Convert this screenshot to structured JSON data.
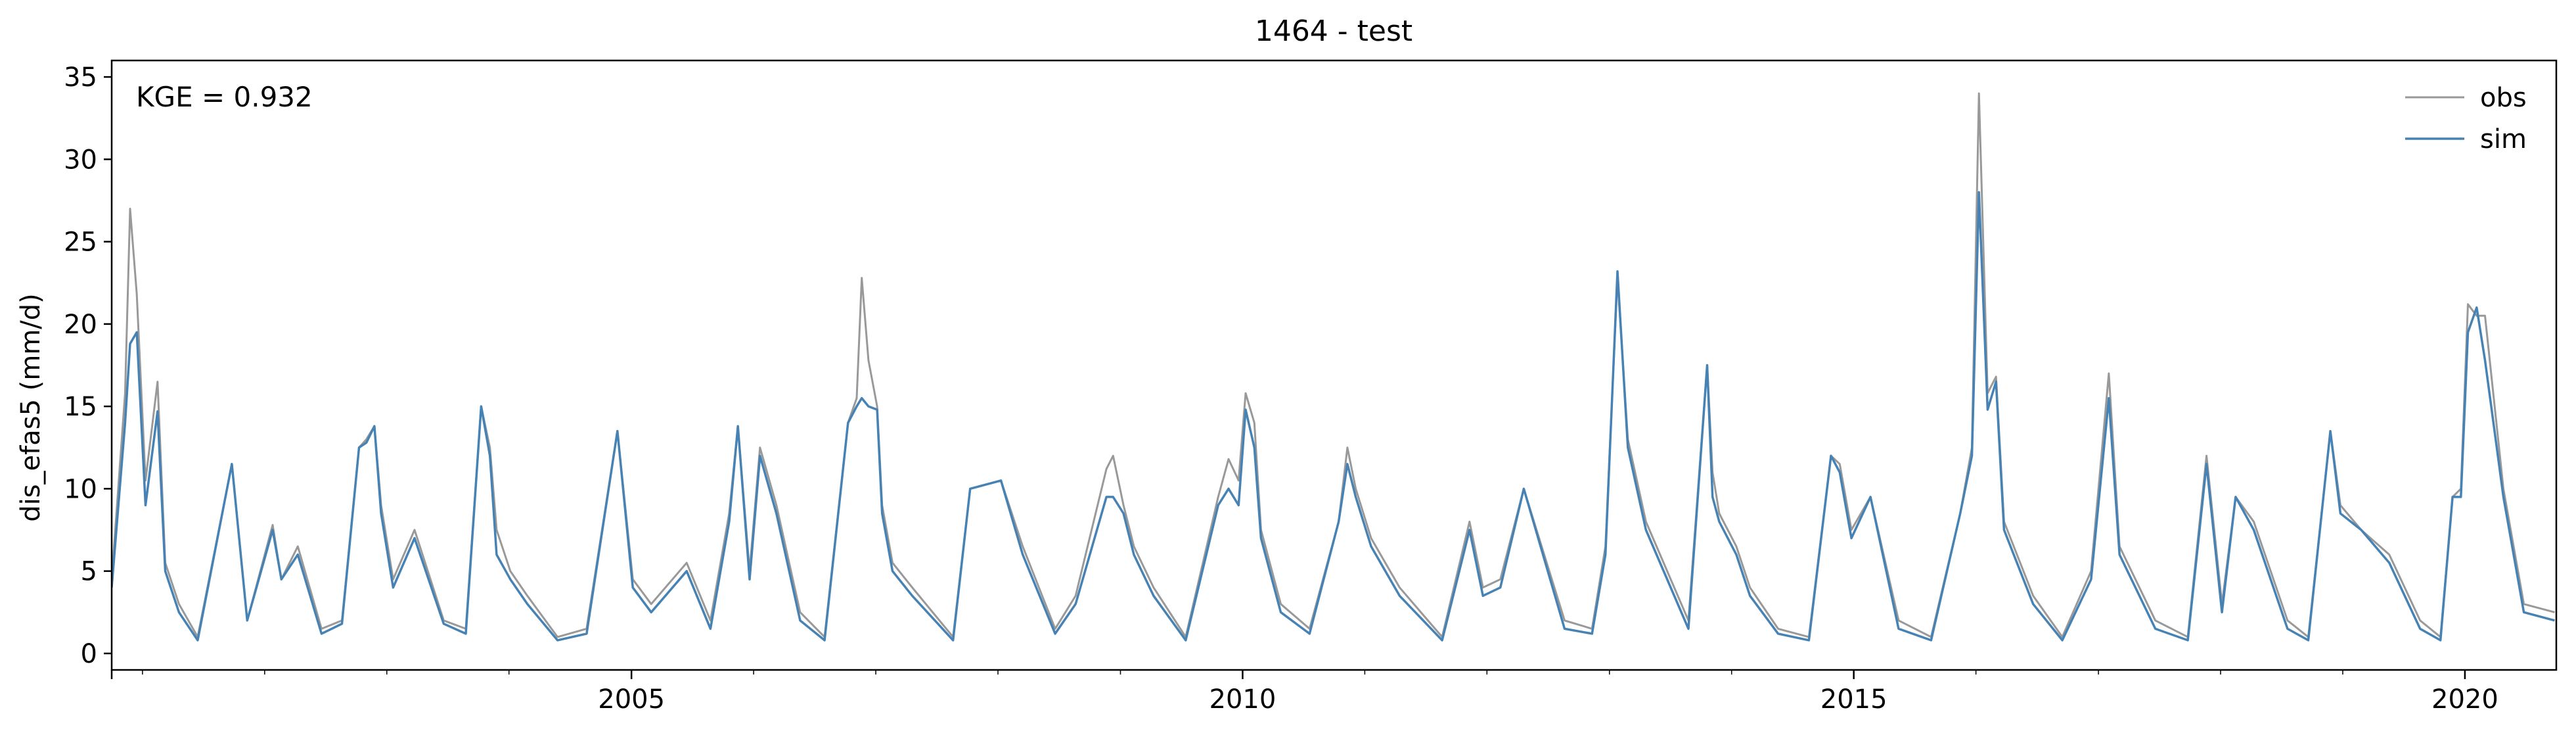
{
  "chart_data": {
    "type": "line",
    "title": "1464 - test",
    "xlabel": "",
    "ylabel": "dis_efas5 (mm/d)",
    "xlim": [
      "2000-10-01",
      "2020-09-30"
    ],
    "ylim": [
      -1,
      36
    ],
    "x_ticks": [
      {
        "value": "2005-01-01",
        "label": "2005"
      },
      {
        "value": "2010-01-01",
        "label": "2010"
      },
      {
        "value": "2015-01-01",
        "label": "2015"
      },
      {
        "value": "2020-01-01",
        "label": "2020"
      }
    ],
    "y_ticks": [
      0,
      5,
      10,
      15,
      20,
      25,
      30,
      35
    ],
    "grid": false,
    "legend": {
      "position": "top-right"
    },
    "annotation": "KGE = 0.932",
    "colors": {
      "obs": "#999999",
      "sim": "#4682b4"
    },
    "series": [
      {
        "name": "obs",
        "x": [
          "2000-10-01",
          "2000-11-10",
          "2000-11-25",
          "2000-12-15",
          "2001-01-10",
          "2001-02-15",
          "2001-03-10",
          "2001-04-20",
          "2001-06-15",
          "2001-09-25",
          "2001-11-10",
          "2002-01-25",
          "2002-02-20",
          "2002-04-10",
          "2002-06-20",
          "2002-08-20",
          "2002-10-10",
          "2002-11-01",
          "2002-11-25",
          "2002-12-15",
          "2003-01-20",
          "2003-03-25",
          "2003-06-20",
          "2003-08-25",
          "2003-10-10",
          "2003-11-05",
          "2003-11-25",
          "2004-01-05",
          "2004-02-25",
          "2004-05-25",
          "2004-08-20",
          "2004-11-20",
          "2005-01-05",
          "2005-03-01",
          "2005-06-15",
          "2005-08-25",
          "2005-10-20",
          "2005-11-15",
          "2005-12-20",
          "2006-01-20",
          "2006-03-10",
          "2006-05-20",
          "2006-08-01",
          "2006-10-10",
          "2006-11-05",
          "2006-11-20",
          "2006-12-10",
          "2007-01-05",
          "2007-01-20",
          "2007-02-20",
          "2007-04-20",
          "2007-08-20",
          "2007-10-10",
          "2008-01-10",
          "2008-03-15",
          "2008-06-20",
          "2008-08-20",
          "2008-11-20",
          "2008-12-10",
          "2009-01-10",
          "2009-02-10",
          "2009-04-10",
          "2009-07-15",
          "2009-10-20",
          "2009-11-20",
          "2009-12-20",
          "2010-01-10",
          "2010-02-05",
          "2010-02-25",
          "2010-04-25",
          "2010-07-20",
          "2010-10-15",
          "2010-11-10",
          "2010-12-05",
          "2011-01-20",
          "2011-04-15",
          "2011-08-20",
          "2011-11-10",
          "2011-12-20",
          "2012-02-10",
          "2012-04-20",
          "2012-08-20",
          "2012-11-10",
          "2012-12-20",
          "2013-01-25",
          "2013-02-25",
          "2013-04-20",
          "2013-08-25",
          "2013-10-20",
          "2013-11-05",
          "2013-11-25",
          "2014-01-15",
          "2014-02-25",
          "2014-05-20",
          "2014-08-20",
          "2014-10-25",
          "2014-11-20",
          "2014-12-25",
          "2015-02-20",
          "2015-05-15",
          "2015-08-20",
          "2015-11-15",
          "2015-12-20",
          "2016-01-10",
          "2016-02-05",
          "2016-03-01",
          "2016-03-25",
          "2016-06-20",
          "2016-09-15",
          "2016-12-10",
          "2017-02-01",
          "2017-03-05",
          "2017-06-20",
          "2017-09-25",
          "2017-11-20",
          "2018-01-05",
          "2018-02-15",
          "2018-04-10",
          "2018-07-20",
          "2018-09-20",
          "2018-11-25",
          "2018-12-25",
          "2019-02-25",
          "2019-05-20",
          "2019-08-20",
          "2019-10-20",
          "2019-11-25",
          "2019-12-20",
          "2020-01-10",
          "2020-02-05",
          "2020-03-01",
          "2020-04-25",
          "2020-06-25",
          "2020-09-25"
        ],
        "y": [
          4.5,
          15.8,
          27.0,
          21.8,
          10.5,
          16.5,
          5.5,
          3.0,
          1.0,
          11.5,
          2.0,
          7.8,
          4.5,
          6.5,
          1.5,
          2.0,
          12.5,
          13.0,
          13.8,
          9.0,
          4.5,
          7.5,
          2.0,
          1.5,
          15.0,
          12.5,
          7.5,
          5.0,
          3.5,
          1.0,
          1.5,
          13.5,
          4.5,
          3.0,
          5.5,
          2.0,
          8.5,
          13.8,
          5.0,
          12.5,
          9.0,
          2.5,
          1.0,
          14.0,
          15.5,
          22.8,
          17.8,
          15.0,
          9.0,
          5.5,
          4.0,
          1.0,
          10.0,
          10.5,
          6.5,
          1.5,
          3.5,
          11.2,
          12.0,
          9.0,
          6.5,
          4.0,
          1.0,
          9.5,
          11.8,
          10.5,
          15.8,
          14.0,
          7.5,
          3.0,
          1.5,
          8.0,
          12.5,
          10.0,
          7.0,
          4.0,
          1.0,
          8.0,
          4.0,
          4.5,
          10.0,
          2.0,
          1.5,
          6.5,
          22.8,
          13.0,
          8.0,
          2.0,
          17.5,
          11.0,
          8.5,
          6.5,
          4.0,
          1.5,
          1.0,
          12.0,
          11.5,
          7.5,
          9.5,
          2.0,
          1.0,
          8.5,
          12.5,
          34.0,
          15.8,
          16.8,
          8.0,
          3.5,
          1.0,
          5.0,
          17.0,
          6.5,
          2.0,
          1.0,
          12.0,
          3.0,
          9.5,
          8.0,
          2.0,
          1.0,
          13.5,
          9.0,
          7.5,
          6.0,
          2.0,
          1.0,
          9.5,
          10.0,
          21.2,
          20.5,
          20.5,
          10.0,
          3.0,
          2.5
        ]
      },
      {
        "name": "sim",
        "x": [
          "2000-10-01",
          "2000-11-10",
          "2000-11-25",
          "2000-12-15",
          "2001-01-10",
          "2001-02-15",
          "2001-03-10",
          "2001-04-20",
          "2001-06-15",
          "2001-09-25",
          "2001-11-10",
          "2002-01-25",
          "2002-02-20",
          "2002-04-10",
          "2002-06-20",
          "2002-08-20",
          "2002-10-10",
          "2002-11-01",
          "2002-11-25",
          "2002-12-15",
          "2003-01-20",
          "2003-03-25",
          "2003-06-20",
          "2003-08-25",
          "2003-10-10",
          "2003-11-05",
          "2003-11-25",
          "2004-01-05",
          "2004-02-25",
          "2004-05-25",
          "2004-08-20",
          "2004-11-20",
          "2005-01-05",
          "2005-03-01",
          "2005-06-15",
          "2005-08-25",
          "2005-10-20",
          "2005-11-15",
          "2005-12-20",
          "2006-01-20",
          "2006-03-10",
          "2006-05-20",
          "2006-08-01",
          "2006-10-10",
          "2006-11-05",
          "2006-11-20",
          "2006-12-10",
          "2007-01-05",
          "2007-01-20",
          "2007-02-20",
          "2007-04-20",
          "2007-08-20",
          "2007-10-10",
          "2008-01-10",
          "2008-03-15",
          "2008-06-20",
          "2008-08-20",
          "2008-11-20",
          "2008-12-10",
          "2009-01-10",
          "2009-02-10",
          "2009-04-10",
          "2009-07-15",
          "2009-10-20",
          "2009-11-20",
          "2009-12-20",
          "2010-01-10",
          "2010-02-05",
          "2010-02-25",
          "2010-04-25",
          "2010-07-20",
          "2010-10-15",
          "2010-11-10",
          "2010-12-05",
          "2011-01-20",
          "2011-04-15",
          "2011-08-20",
          "2011-11-10",
          "2011-12-20",
          "2012-02-10",
          "2012-04-20",
          "2012-08-20",
          "2012-11-10",
          "2012-12-20",
          "2013-01-25",
          "2013-02-25",
          "2013-04-20",
          "2013-08-25",
          "2013-10-20",
          "2013-11-05",
          "2013-11-25",
          "2014-01-15",
          "2014-02-25",
          "2014-05-20",
          "2014-08-20",
          "2014-10-25",
          "2014-11-20",
          "2014-12-25",
          "2015-02-20",
          "2015-05-15",
          "2015-08-20",
          "2015-11-15",
          "2015-12-20",
          "2016-01-10",
          "2016-02-05",
          "2016-03-01",
          "2016-03-25",
          "2016-06-20",
          "2016-09-15",
          "2016-12-10",
          "2017-02-01",
          "2017-03-05",
          "2017-06-20",
          "2017-09-25",
          "2017-11-20",
          "2018-01-05",
          "2018-02-15",
          "2018-04-10",
          "2018-07-20",
          "2018-09-20",
          "2018-11-25",
          "2018-12-25",
          "2019-02-25",
          "2019-05-20",
          "2019-08-20",
          "2019-10-20",
          "2019-11-25",
          "2019-12-20",
          "2020-01-10",
          "2020-02-05",
          "2020-03-01",
          "2020-04-25",
          "2020-06-25",
          "2020-09-25"
        ],
        "y": [
          4.0,
          14.0,
          18.8,
          19.5,
          9.0,
          14.7,
          5.0,
          2.5,
          0.8,
          11.5,
          2.0,
          7.5,
          4.5,
          6.0,
          1.2,
          1.8,
          12.5,
          12.8,
          13.8,
          8.5,
          4.0,
          7.0,
          1.8,
          1.2,
          15.0,
          12.0,
          6.0,
          4.5,
          3.0,
          0.8,
          1.2,
          13.5,
          4.0,
          2.5,
          5.0,
          1.5,
          8.0,
          13.8,
          4.5,
          12.0,
          8.5,
          2.0,
          0.8,
          14.0,
          15.0,
          15.5,
          15.0,
          14.8,
          8.5,
          5.0,
          3.5,
          0.8,
          10.0,
          10.5,
          6.0,
          1.2,
          3.0,
          9.5,
          9.5,
          8.5,
          6.0,
          3.5,
          0.8,
          9.0,
          10.0,
          9.0,
          14.8,
          12.5,
          7.0,
          2.5,
          1.2,
          8.0,
          11.5,
          9.5,
          6.5,
          3.5,
          0.8,
          7.5,
          3.5,
          4.0,
          10.0,
          1.5,
          1.2,
          6.0,
          23.2,
          12.5,
          7.5,
          1.5,
          17.5,
          9.5,
          8.0,
          6.0,
          3.5,
          1.2,
          0.8,
          12.0,
          11.0,
          7.0,
          9.5,
          1.5,
          0.8,
          8.5,
          12.0,
          28.0,
          14.8,
          16.5,
          7.5,
          3.0,
          0.8,
          4.5,
          15.5,
          6.0,
          1.5,
          0.8,
          11.5,
          2.5,
          9.5,
          7.5,
          1.5,
          0.8,
          13.5,
          8.5,
          7.5,
          5.5,
          1.5,
          0.8,
          9.5,
          9.5,
          19.5,
          21.0,
          17.8,
          9.5,
          2.5,
          2.0
        ]
      }
    ]
  }
}
